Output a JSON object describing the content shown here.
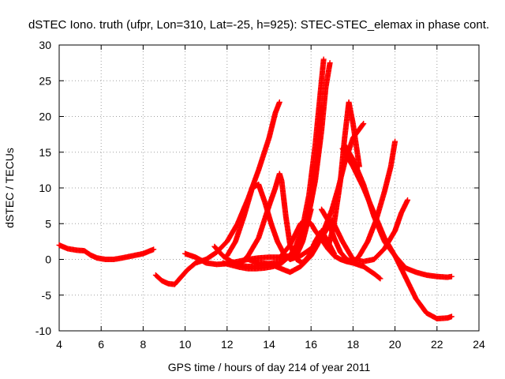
{
  "chart_data": {
    "type": "scatter",
    "title": "dSTEC Iono. truth (ufpr, Lon=310, Lat=-25, h=925): STEC-STEC_elemax in phase cont.",
    "xlabel": "GPS time / hours of day 214 of year 2011",
    "ylabel": "dSTEC  / TECUs",
    "xlim": [
      4,
      24
    ],
    "ylim": [
      -10,
      30
    ],
    "xticks": [
      4,
      6,
      8,
      10,
      12,
      14,
      16,
      18,
      20,
      22,
      24
    ],
    "yticks": [
      -10,
      -5,
      0,
      5,
      10,
      15,
      20,
      25,
      30
    ],
    "grid": true,
    "marker": "+",
    "color": "#ff0000",
    "series": [
      {
        "x": [
          4.0,
          4.4,
          4.8,
          5.2,
          5.5,
          5.8,
          6.2,
          6.6,
          7.0,
          7.5,
          8.0,
          8.5
        ],
        "y": [
          2.0,
          1.5,
          1.3,
          1.2,
          0.6,
          0.2,
          0.0,
          0.0,
          0.2,
          0.5,
          0.8,
          1.4
        ]
      },
      {
        "x": [
          8.6,
          8.9,
          9.2,
          9.5,
          9.8,
          10.1,
          10.5,
          11.0,
          11.5,
          12.0,
          12.5,
          13.0,
          13.5,
          14.0,
          14.3,
          14.5
        ],
        "y": [
          -2.2,
          -3.0,
          -3.4,
          -3.5,
          -2.5,
          -1.5,
          -0.5,
          0.0,
          1.0,
          2.5,
          5.0,
          8.5,
          12.5,
          17.0,
          20.5,
          22.0
        ]
      },
      {
        "x": [
          10.0,
          10.5,
          11.0,
          11.5,
          12.0,
          12.5,
          13.0,
          13.5,
          14.0,
          14.5,
          15.0,
          15.3,
          15.6,
          16.0,
          16.3,
          16.5
        ],
        "y": [
          0.8,
          0.3,
          -0.5,
          -0.7,
          -0.6,
          -0.3,
          0.0,
          0.2,
          0.3,
          0.3,
          0.5,
          1.5,
          3.5,
          8.0,
          14.0,
          21.5
        ]
      },
      {
        "x": [
          11.4,
          11.8,
          12.2,
          12.6,
          13.0,
          13.4,
          13.8,
          14.2,
          14.6,
          15.0,
          15.4,
          15.8,
          16.2,
          16.5,
          16.7,
          16.9
        ],
        "y": [
          1.8,
          0.5,
          -0.3,
          -0.8,
          -1.0,
          -0.9,
          -0.7,
          -0.5,
          -0.3,
          0.5,
          2.0,
          5.0,
          11.0,
          18.0,
          24.0,
          27.5
        ]
      },
      {
        "x": [
          11.8,
          12.2,
          12.6,
          13.0,
          13.4,
          13.8,
          14.2,
          14.6,
          15.0,
          15.3,
          15.6,
          15.9,
          16.2,
          16.4,
          16.6
        ],
        "y": [
          -0.5,
          -0.8,
          -1.1,
          -1.3,
          -1.3,
          -1.2,
          -1.0,
          -0.5,
          0.5,
          2.0,
          4.5,
          9.0,
          16.0,
          22.0,
          28.0
        ]
      },
      {
        "x": [
          12.0,
          12.4,
          12.8,
          13.2,
          13.5,
          13.8,
          14.1,
          14.4,
          14.7,
          15.0,
          15.3,
          15.6,
          16.0
        ],
        "y": [
          0.5,
          2.5,
          6.0,
          10.0,
          10.5,
          8.0,
          5.0,
          2.5,
          0.8,
          0.0,
          0.5,
          2.5,
          7.0
        ]
      },
      {
        "x": [
          12.5,
          13.0,
          13.5,
          14.0,
          14.3,
          14.5,
          14.6,
          14.8,
          15.0,
          15.3,
          15.6,
          15.9,
          16.2,
          16.5,
          16.8,
          17.1
        ],
        "y": [
          -1.0,
          0.5,
          3.0,
          7.5,
          10.0,
          12.0,
          11.0,
          6.0,
          2.0,
          0.0,
          -0.5,
          0.5,
          2.5,
          4.0,
          2.5,
          0.8
        ]
      },
      {
        "x": [
          13.0,
          13.5,
          14.0,
          14.5,
          15.0,
          15.5,
          16.0,
          16.3,
          16.6,
          17.0,
          17.3,
          17.6,
          18.0,
          18.5
        ],
        "y": [
          0.0,
          -0.5,
          -0.6,
          -1.2,
          -1.8,
          -1.0,
          0.5,
          2.0,
          4.0,
          7.0,
          10.0,
          13.5,
          17.0,
          19.0
        ]
      },
      {
        "x": [
          14.5,
          15.0,
          15.5,
          15.8,
          16.0,
          16.2,
          16.5,
          16.8,
          17.1,
          17.4,
          17.7,
          18.0,
          18.5,
          19.0,
          19.3
        ],
        "y": [
          0.2,
          2.0,
          5.0,
          5.5,
          5.0,
          4.0,
          2.8,
          1.5,
          0.5,
          0.0,
          -0.3,
          -0.5,
          -1.0,
          -2.0,
          -2.7
        ]
      },
      {
        "x": [
          15.0,
          15.5,
          16.0,
          16.5,
          17.0,
          17.5,
          18.0,
          18.5,
          19.0,
          19.5,
          20.0,
          20.3,
          20.6
        ],
        "y": [
          0.0,
          0.5,
          1.5,
          3.0,
          5.5,
          2.5,
          0.0,
          -0.3,
          0.0,
          1.5,
          4.0,
          6.5,
          8.3
        ]
      },
      {
        "x": [
          16.5,
          16.8,
          17.1,
          17.4,
          17.7,
          18.0,
          18.3,
          18.7,
          19.1,
          19.5,
          19.8,
          20.0
        ],
        "y": [
          7.0,
          5.5,
          3.0,
          1.0,
          0.0,
          -0.5,
          0.5,
          2.5,
          5.5,
          9.5,
          13.0,
          16.5
        ]
      },
      {
        "x": [
          16.8,
          17.1,
          17.4,
          17.6,
          17.8,
          18.0,
          18.3
        ],
        "y": [
          1.5,
          5.0,
          11.0,
          17.0,
          22.0,
          19.0,
          13.0
        ]
      },
      {
        "x": [
          17.5,
          18.0,
          18.5,
          19.0,
          19.5,
          20.0,
          20.5,
          21.0,
          21.5,
          22.0,
          22.5,
          22.7
        ],
        "y": [
          15.5,
          13.0,
          10.0,
          6.5,
          3.0,
          0.5,
          -1.2,
          -1.8,
          -2.2,
          -2.4,
          -2.5,
          -2.4
        ]
      },
      {
        "x": [
          17.6,
          18.0,
          18.5,
          19.0,
          19.5,
          20.0,
          20.5,
          21.0,
          21.5,
          22.0,
          22.5,
          22.7
        ],
        "y": [
          16.0,
          14.0,
          10.5,
          6.0,
          2.5,
          0.5,
          -2.5,
          -5.5,
          -7.5,
          -8.3,
          -8.2,
          -8.0
        ]
      }
    ]
  }
}
